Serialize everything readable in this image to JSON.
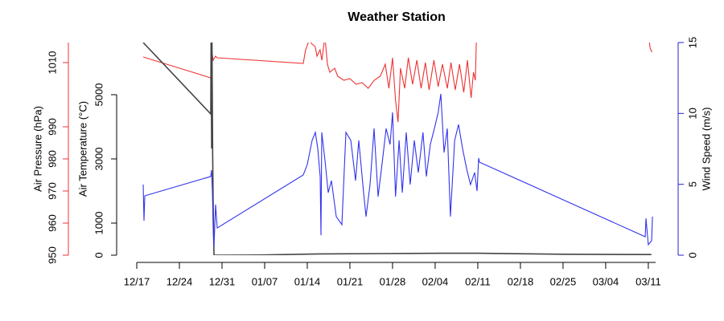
{
  "chart_data": {
    "type": "line",
    "title": "Weather Station",
    "xlim": [
      0,
      85.2
    ],
    "xticks": [
      {
        "value": 0,
        "label": "12/17"
      },
      {
        "value": 7,
        "label": "12/24"
      },
      {
        "value": 14,
        "label": "12/31"
      },
      {
        "value": 21,
        "label": "01/07"
      },
      {
        "value": 28,
        "label": "01/14"
      },
      {
        "value": 35,
        "label": "01/21"
      },
      {
        "value": 42,
        "label": "01/28"
      },
      {
        "value": 49,
        "label": "02/04"
      },
      {
        "value": 56,
        "label": "02/11"
      },
      {
        "value": 63,
        "label": "02/18"
      },
      {
        "value": 70,
        "label": "02/25"
      },
      {
        "value": 77,
        "label": "03/04"
      },
      {
        "value": 84,
        "label": "03/11"
      }
    ],
    "ylabel": "Air Pressure (hPa)",
    "ylim": [
      950,
      1016.25
    ],
    "yticks": [
      950,
      960,
      970,
      980,
      990,
      1010
    ],
    "ycolor": "#ee3333",
    "y2label": "Air Temperature (°C)",
    "y2lim": [
      0,
      6625
    ],
    "y2ticks": [
      0,
      1000,
      3000,
      5000
    ],
    "y2color": "#000000",
    "y3label": "Wind Speed (m/s)",
    "y3lim": [
      0,
      15
    ],
    "y3ticks": [
      0,
      5,
      10,
      15
    ],
    "y3color": "#2222cc",
    "series": [
      {
        "axis": "y",
        "color": "#ee3333",
        "x": [
          1.06,
          12.15,
          12.29,
          12.55,
          12.95,
          13.2,
          27.34,
          27.7,
          28.3,
          28.8,
          29.3,
          29.6,
          30.1,
          30.4,
          30.9,
          31.3,
          31.7,
          32.5,
          33.0,
          34.0,
          35.0,
          36.0,
          37.0,
          38.0,
          39.0,
          40.0,
          40.8,
          41.4,
          42.0,
          42.5,
          42.9,
          43.3,
          44.0,
          44.6,
          45.3,
          46.0,
          46.7,
          47.4,
          48.0,
          48.8,
          49.5,
          50.2,
          51.0,
          51.6,
          52.3,
          53.0,
          53.7,
          54.3,
          54.9,
          55.3,
          55.6,
          55.8,
          70.0,
          84.0,
          84.3,
          84.6
        ],
        "values": [
          1011.75,
          1005.25,
          1014,
          1010.75,
          1012,
          1011.5,
          1009.75,
          1013.75,
          1017,
          1015.75,
          1015,
          1012,
          1014,
          1010.75,
          1018.25,
          1009.5,
          1007,
          1008.25,
          1005.75,
          1004.5,
          1005,
          1003.25,
          1003.75,
          1002,
          1004.5,
          1005.75,
          1009.5,
          1002,
          1011.5,
          998.25,
          991.5,
          1008.25,
          1002,
          1011.5,
          1003.25,
          1010.75,
          1002,
          1010,
          1001.5,
          1010.75,
          1002.5,
          1009.5,
          1002,
          1010,
          1001.5,
          1009.5,
          1000.75,
          1010.75,
          999,
          1007,
          1004.5,
          1019.5,
          null,
          1019,
          1014.5,
          1013.25
        ]
      },
      {
        "axis": "y2",
        "color": "#444444",
        "x": [
          1.06,
          12.15,
          12.2,
          12.3,
          12.35,
          12.45,
          12.55,
          12.68,
          20,
          30,
          40,
          50,
          56,
          70,
          84.5
        ],
        "values": [
          6625,
          4400,
          6625,
          3325,
          6625,
          3325,
          1500,
          0,
          5,
          40,
          50,
          60,
          60,
          30,
          20
        ]
      },
      {
        "axis": "y3",
        "color": "#3333ee",
        "x": [
          1.06,
          1.19,
          1.32,
          12.15,
          12.29,
          12.42,
          12.55,
          12.68,
          12.95,
          13.21,
          27.34,
          28.0,
          28.8,
          29.33,
          29.72,
          30.12,
          30.25,
          30.38,
          30.91,
          31.44,
          31.97,
          32.76,
          33.69,
          34.35,
          35.15,
          35.93,
          36.46,
          37.25,
          37.65,
          38.31,
          38.97,
          39.63,
          40.42,
          40.95,
          41.6,
          42.0,
          42.5,
          43.07,
          43.6,
          44.25,
          44.9,
          45.57,
          46.23,
          47.0,
          47.56,
          48.2,
          48.88,
          49.5,
          49.93,
          50.46,
          50.99,
          51.5,
          52.2,
          52.84,
          53.5,
          54.16,
          54.8,
          55.48,
          55.88,
          56.14,
          56.28,
          83.49,
          83.62,
          84.0,
          84.54,
          84.68
        ],
        "values": [
          4.98,
          2.43,
          4.19,
          5.55,
          6.0,
          4.53,
          1.87,
          0.62,
          3.57,
          1.92,
          5.66,
          6.4,
          8.1,
          8.66,
          7.53,
          5.55,
          1.41,
          8.66,
          6.68,
          4.41,
          5.26,
          2.72,
          2.15,
          8.66,
          8.1,
          5.26,
          8.1,
          4.41,
          2.72,
          4.98,
          8.94,
          4.13,
          6.96,
          8.94,
          7.81,
          10.07,
          4.13,
          8.1,
          4.41,
          8.66,
          4.98,
          8.1,
          5.83,
          8.66,
          5.55,
          7.81,
          8.94,
          10.07,
          11.38,
          7.24,
          8.94,
          2.72,
          8.1,
          9.22,
          7.53,
          6.11,
          4.98,
          5.83,
          4.53,
          6.85,
          6.56,
          1.3,
          2.6,
          0.74,
          1.02,
          2.72
        ]
      }
    ]
  }
}
